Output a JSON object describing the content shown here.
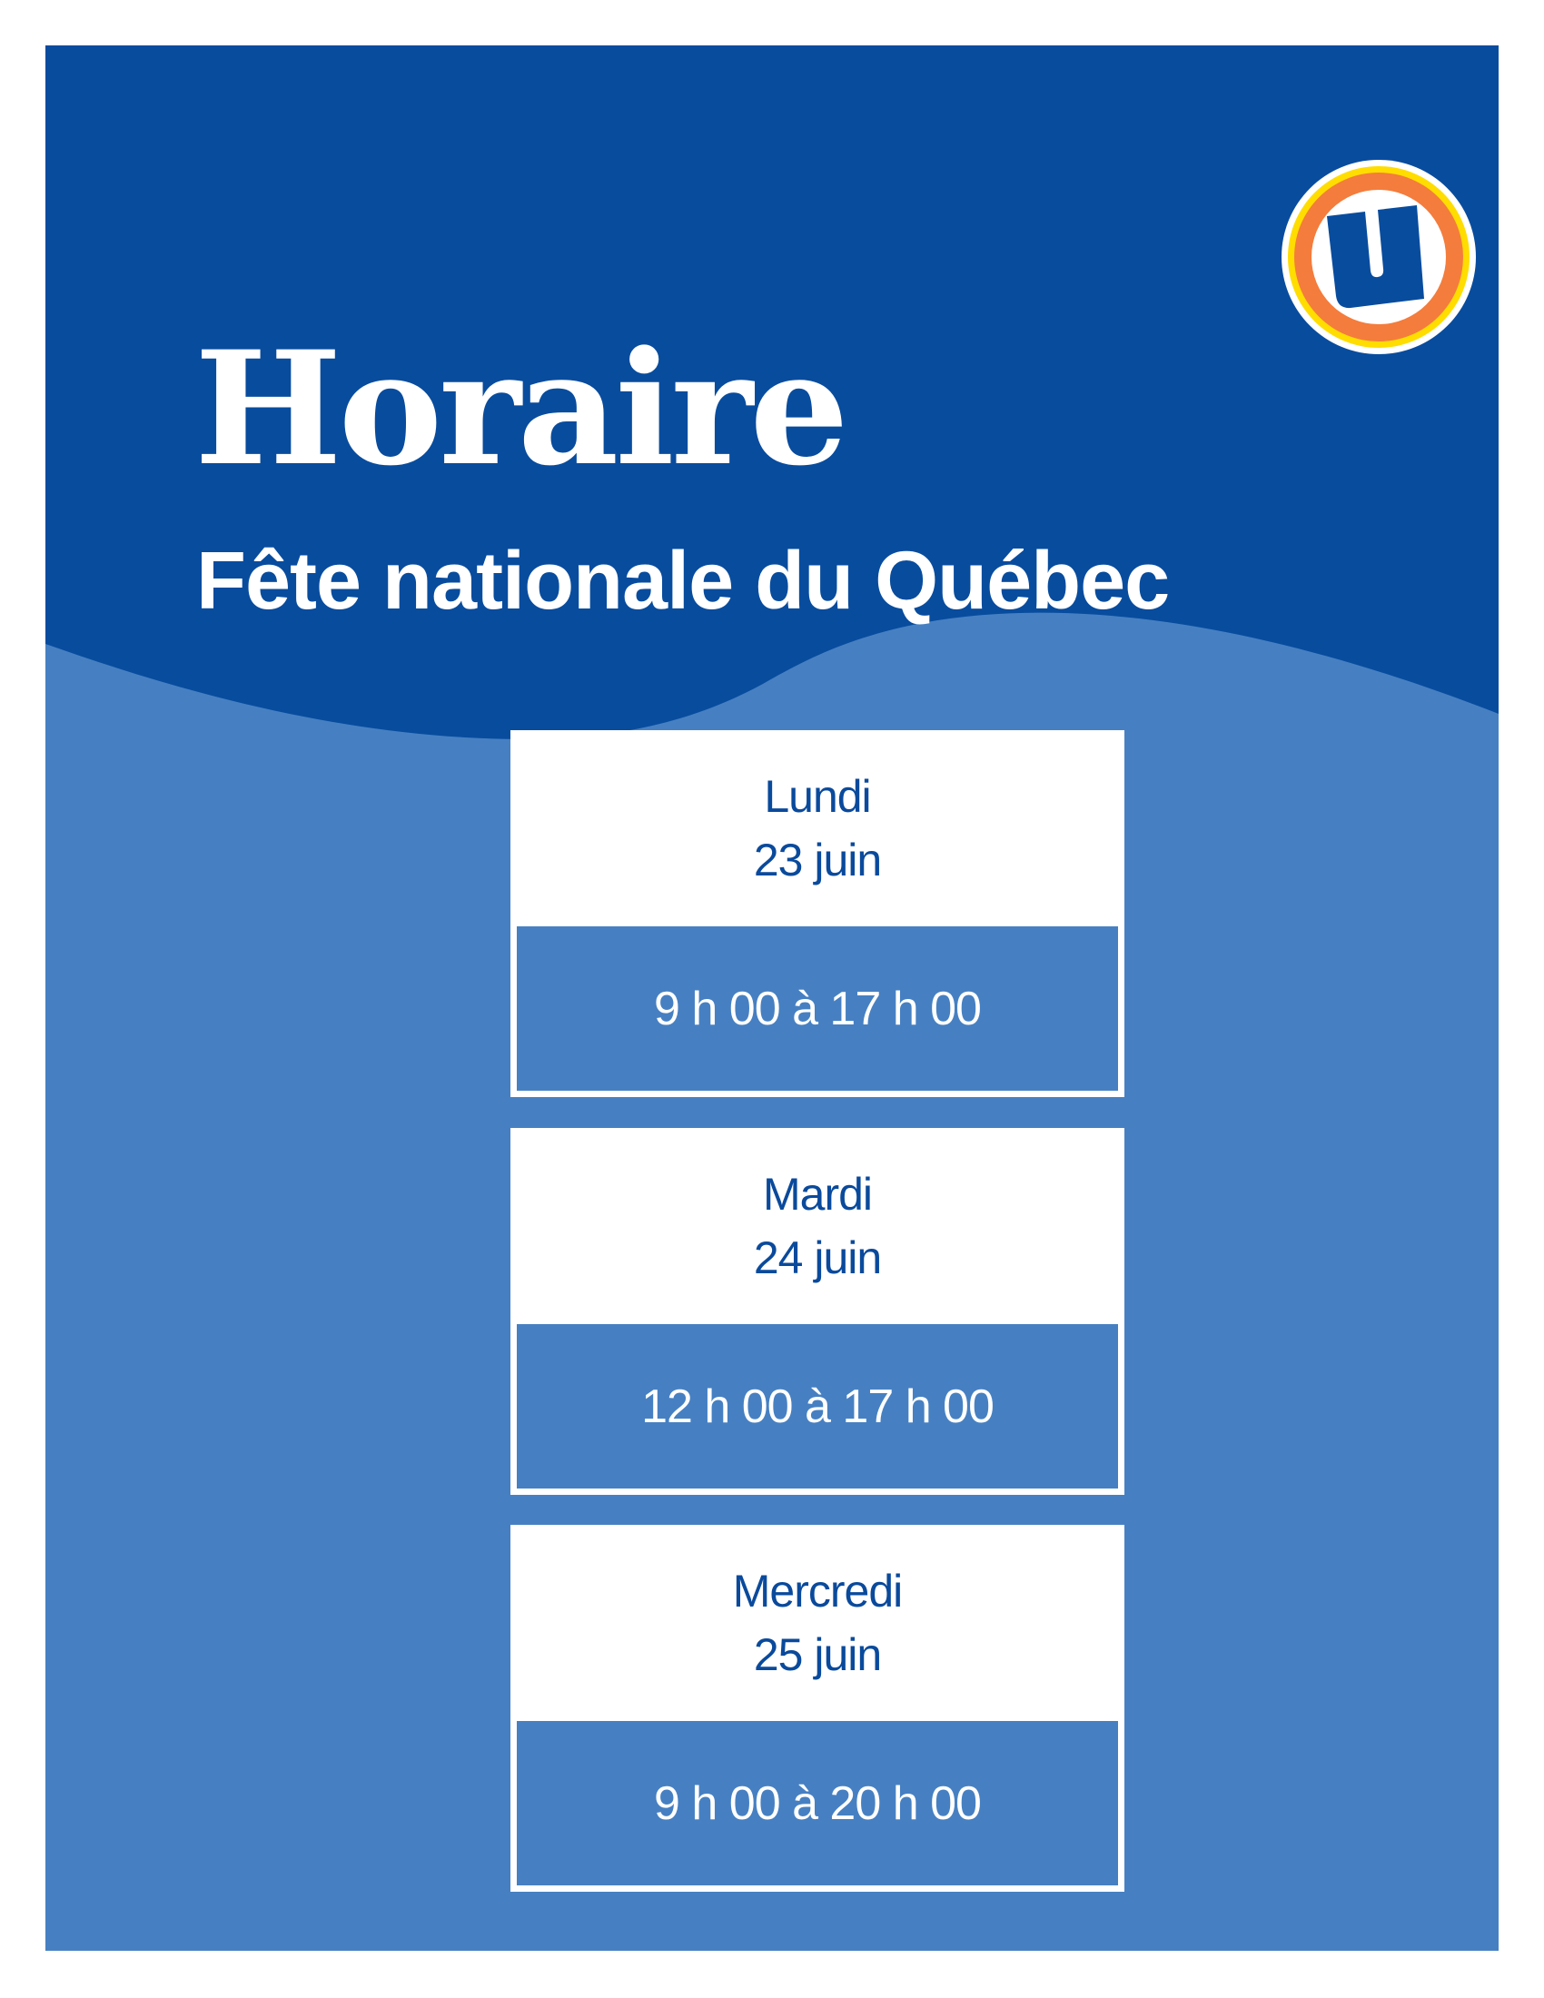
{
  "header": {
    "title": "Horaire",
    "subtitle": "Fête nationale du Québec",
    "logo": "U-brand-circle-logo"
  },
  "colors": {
    "dark_blue": "#084C9E",
    "light_blue": "#4680C2",
    "text_blue": "#0A4A9C",
    "logo_orange": "#F47C3C",
    "logo_yellow": "#FFDD00"
  },
  "schedule": [
    {
      "day": "Lundi",
      "date": "23 juin",
      "hours": "9 h 00 à 17 h 00"
    },
    {
      "day": "Mardi",
      "date": "24 juin",
      "hours": "12 h 00 à 17 h 00"
    },
    {
      "day": "Mercredi",
      "date": "25 juin",
      "hours": "9 h 00 à 20 h 00"
    }
  ]
}
